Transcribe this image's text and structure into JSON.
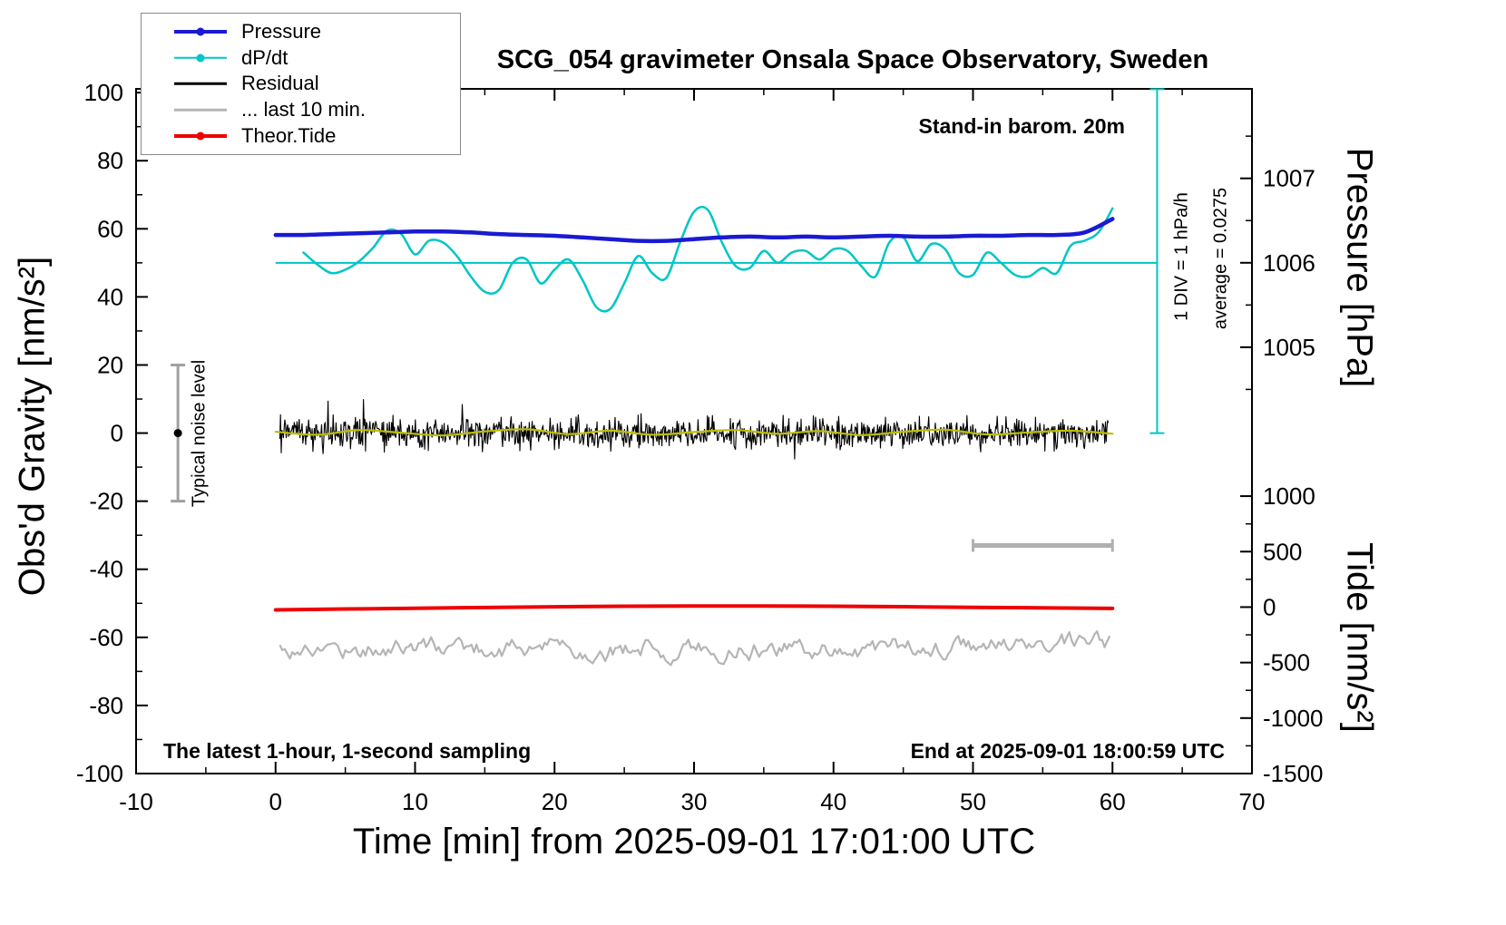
{
  "title": "SCG_054 gravimeter Onsala Space Observatory, Sweden",
  "annotations": {
    "barometer": "Stand-in barom. 20m",
    "div_scale": "1 DIV = 1 hPa/h",
    "average": "average = 0.0275",
    "noise_level": "Typical noise level",
    "sampling": "The latest 1-hour, 1-second sampling",
    "end_time": "End at 2025-09-01 18:00:59 UTC"
  },
  "legend": {
    "items": [
      {
        "label": "Pressure",
        "color": "#1a1ad2",
        "thickness": 4,
        "dot": true
      },
      {
        "label": "dP/dt",
        "color": "#00c6c6",
        "thickness": 2.5,
        "dot": true
      },
      {
        "label": "Residual",
        "color": "#000000",
        "thickness": 2.5,
        "dot": false
      },
      {
        "label": "... last 10 min.",
        "color": "#b5b5b5",
        "thickness": 2.5,
        "dot": false
      },
      {
        "label": "Theor.Tide",
        "color": "#ee0000",
        "thickness": 4,
        "dot": true
      }
    ]
  },
  "chart_data": {
    "type": "line",
    "title": "SCG_054 gravimeter Onsala Space Observatory, Sweden",
    "axes": {
      "x": {
        "label": "Time [min] from 2025-09-01 17:01:00 UTC",
        "range": [
          -10,
          70
        ],
        "major_ticks": [
          -10,
          0,
          10,
          20,
          30,
          40,
          50,
          60,
          70
        ],
        "minor_step": 5
      },
      "gravity": {
        "label": "Obs'd Gravity [nm/s²]",
        "range": [
          -100,
          101.1
        ],
        "major_ticks": [
          100,
          80,
          60,
          40,
          20,
          0,
          -20,
          -40,
          -60,
          -80,
          -100
        ],
        "minor_step": 10
      },
      "pressure": {
        "label": "Pressure [hPa]",
        "range": [
          999.95,
          1008.06
        ],
        "major_ticks": [
          1007,
          1006,
          1005
        ],
        "minor_ticks": [
          1007.5,
          1006.5,
          1005.5,
          1004.5
        ]
      },
      "tide": {
        "label": "Tide [nm/s²]",
        "range": [
          -1500,
          4670
        ],
        "major_ticks": [
          1000,
          500,
          0,
          -500,
          -1000,
          -1500
        ],
        "minor_ticks": [
          750,
          250,
          -250,
          -750,
          -1250
        ]
      }
    },
    "series": [
      {
        "name": "Pressure",
        "axis": "pressure",
        "units": "hPa",
        "color": "#1a1ad2",
        "width": 4.5,
        "smooth": true,
        "x_start": 0,
        "x_step": 2,
        "values": [
          1006.33,
          1006.33,
          1006.34,
          1006.35,
          1006.36,
          1006.37,
          1006.37,
          1006.36,
          1006.34,
          1006.33,
          1006.32,
          1006.3,
          1006.28,
          1006.26,
          1006.26,
          1006.28,
          1006.3,
          1006.31,
          1006.3,
          1006.31,
          1006.3,
          1006.31,
          1006.32,
          1006.31,
          1006.31,
          1006.32,
          1006.32,
          1006.33,
          1006.33,
          1006.36,
          1006.52
        ]
      },
      {
        "name": "dP/dt",
        "axis": "gravity",
        "units": "hPa/h",
        "zero_gravity": 50,
        "gravity_per_unit": 10,
        "color": "#00c6c6",
        "width": 2.5,
        "smooth": true,
        "x_start": 2,
        "x_step": 1,
        "values": [
          0.3,
          -0.05,
          -0.3,
          -0.2,
          0.05,
          0.45,
          0.95,
          0.85,
          0.25,
          0.65,
          0.6,
          0.2,
          -0.4,
          -0.85,
          -0.8,
          0.0,
          0.1,
          -0.6,
          -0.2,
          0.1,
          -0.5,
          -1.3,
          -1.35,
          -0.6,
          0.2,
          -0.3,
          -0.45,
          0.6,
          1.5,
          1.55,
          0.6,
          -0.1,
          -0.15,
          0.35,
          0.0,
          0.3,
          0.35,
          0.1,
          0.4,
          0.35,
          -0.1,
          -0.4,
          0.6,
          0.75,
          0.05,
          0.55,
          0.4,
          -0.3,
          -0.35,
          0.3,
          0.0,
          -0.35,
          -0.4,
          -0.15,
          -0.3,
          0.5,
          0.65,
          0.9,
          1.6
        ]
      },
      {
        "name": "Residual 10-min mean",
        "axis": "gravity",
        "units": "nm/s²",
        "color": "#bcbe00",
        "width": 2.2,
        "smooth": true,
        "x_start": 0,
        "x_step": 3,
        "values": [
          0.4,
          -0.5,
          0.9,
          0.1,
          -0.7,
          0.5,
          1.1,
          -0.3,
          0.7,
          -0.5,
          0.3,
          0.9,
          -0.2,
          0.6,
          -0.6,
          0.4,
          1.0,
          -0.4,
          0.2,
          0.7,
          -0.2
        ]
      },
      {
        "name": "Theor.Tide",
        "axis": "tide",
        "units": "nm/s²",
        "color": "#ee0000",
        "width": 4,
        "smooth": true,
        "x_start": 0,
        "x_step": 10,
        "values": [
          -25,
          -10,
          3,
          10,
          8,
          -2,
          -12
        ]
      }
    ],
    "noise": {
      "residual": {
        "name": "Residual",
        "axis": "gravity",
        "color": "#000000",
        "width": 1.1,
        "center": 0,
        "sigma": 2.3,
        "spike_chance": 0.02,
        "spike_mult": 1.7,
        "points": 1150,
        "x_range": [
          0.3,
          59.7
        ],
        "seed": 20250901
      },
      "last10": {
        "name": "... last 10 min.",
        "axis": "gravity",
        "color": "#b5b5b5",
        "width": 2.2,
        "center": -63,
        "ar": 0.78,
        "drive": 4.4,
        "clamp": 6.5,
        "points": 330,
        "x_range": [
          0.3,
          59.8
        ],
        "seed": 17
      }
    },
    "markers": {
      "noise_bar": {
        "x": -7,
        "gravity_from": -20,
        "gravity_to": 20,
        "dot_at": 0,
        "color": "#a0a0a0"
      },
      "zero_line_dpdt": {
        "gravity": 50,
        "x_from": 0,
        "x_to": 63.2,
        "color": "#00c6c6"
      },
      "div_axis": {
        "x": 63.2,
        "gravity_from": 0,
        "gravity_to": 101,
        "color": "#00c6c6"
      },
      "scale_bar": {
        "x_from": 50,
        "x_to": 60,
        "gravity": -33,
        "color": "#b0b0b0"
      }
    }
  }
}
